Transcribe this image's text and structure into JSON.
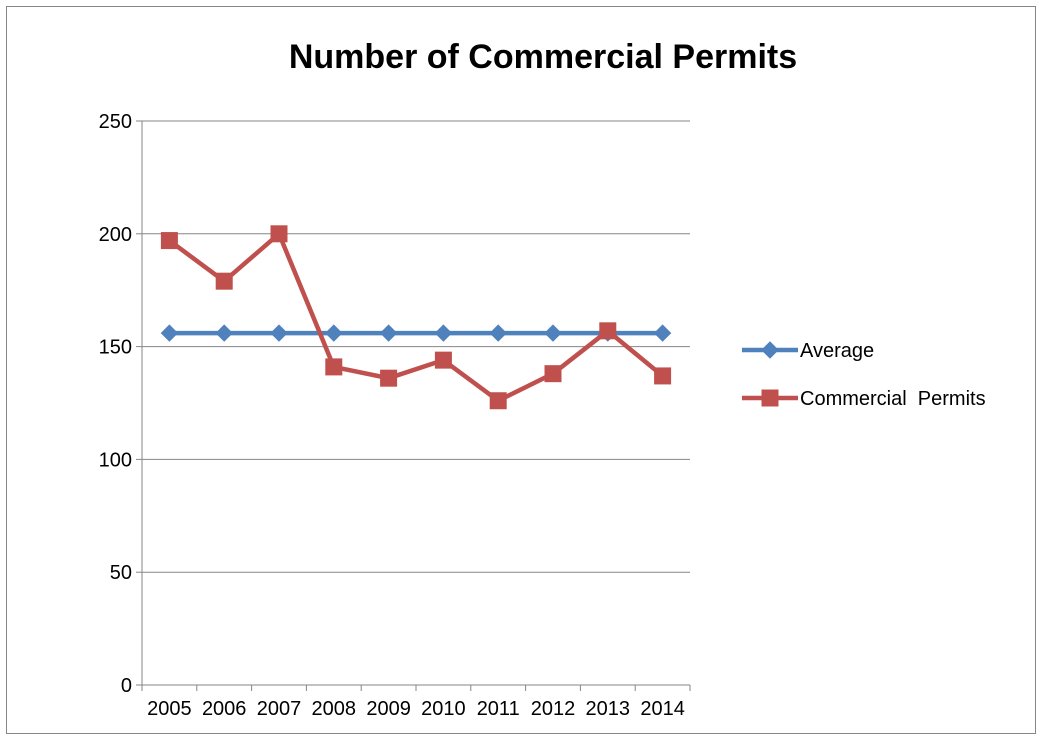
{
  "chart_data": {
    "type": "line",
    "title": "Number of Commercial Permits",
    "categories": [
      "2005",
      "2006",
      "2007",
      "2008",
      "2009",
      "2010",
      "2011",
      "2012",
      "2013",
      "2014"
    ],
    "ylim": [
      0,
      250
    ],
    "yticks": [
      0,
      50,
      100,
      150,
      200,
      250
    ],
    "grid": true,
    "legend_position": "right",
    "series": [
      {
        "name": "Average",
        "color": "#4f81bd",
        "marker": "diamond",
        "values": [
          156,
          156,
          156,
          156,
          156,
          156,
          156,
          156,
          156,
          156
        ]
      },
      {
        "name": "Commercial  Permits",
        "color": "#c0504d",
        "marker": "square",
        "values": [
          197,
          179,
          200,
          141,
          136,
          144,
          126,
          138,
          157,
          137
        ]
      }
    ]
  }
}
